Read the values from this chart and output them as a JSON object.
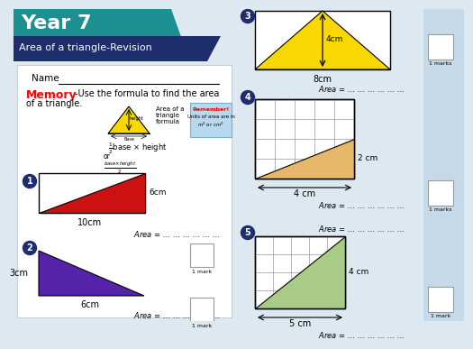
{
  "title_year": "Year 7",
  "title_sub": "Area of a triangle-Revision",
  "bg_color": "#dde8f0",
  "header_teal": "#1a9090",
  "header_dark": "#1e2d6b",
  "white": "#ffffff",
  "red_tri": "#cc1111",
  "purple": "#5522aa",
  "yellow": "#f8d800",
  "orange_light": "#e8b86a",
  "green_light": "#a8cc88",
  "mark_box_bg": "#c5d9e8",
  "q1_height": "6cm",
  "q1_base": "10cm",
  "q2_height": "3cm",
  "q2_base": "6cm",
  "q3_height": "4cm",
  "q3_base": "8cm",
  "q4_height": "2 cm",
  "q4_base": "4 cm",
  "q5_height": "4 cm",
  "q5_base": "5 cm"
}
